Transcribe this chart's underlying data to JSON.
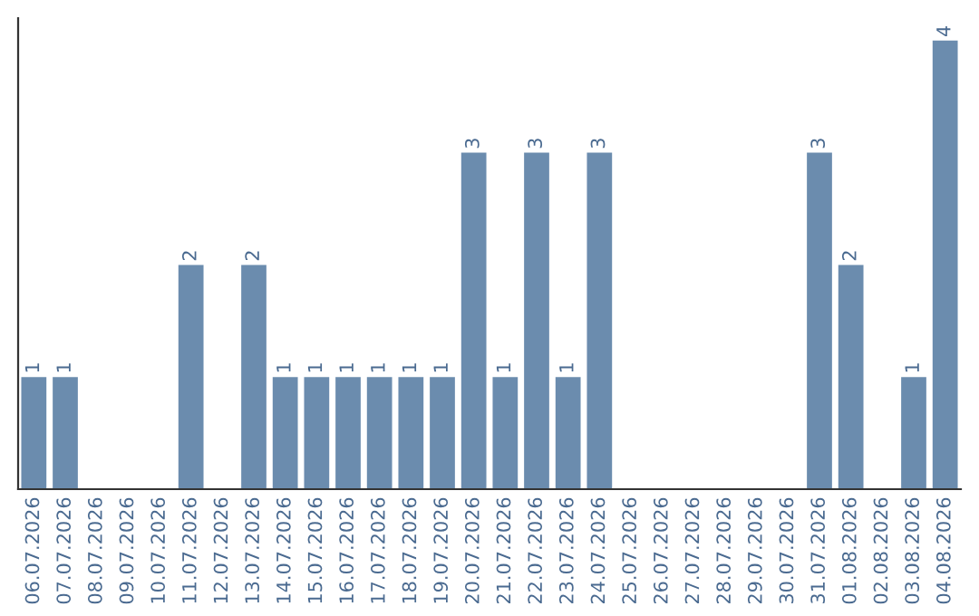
{
  "chart_data": {
    "type": "bar",
    "categories": [
      "06.07.2026",
      "07.07.2026",
      "08.07.2026",
      "09.07.2026",
      "10.07.2026",
      "11.07.2026",
      "12.07.2026",
      "13.07.2026",
      "14.07.2026",
      "15.07.2026",
      "16.07.2026",
      "17.07.2026",
      "18.07.2026",
      "19.07.2026",
      "20.07.2026",
      "21.07.2026",
      "22.07.2026",
      "23.07.2026",
      "24.07.2026",
      "25.07.2026",
      "26.07.2026",
      "27.07.2026",
      "28.07.2026",
      "29.07.2026",
      "30.07.2026",
      "31.07.2026",
      "01.08.2026",
      "02.08.2026",
      "03.08.2026",
      "04.08.2026"
    ],
    "values": [
      1,
      1,
      0,
      0,
      0,
      2,
      0,
      2,
      1,
      1,
      1,
      1,
      1,
      1,
      3,
      1,
      3,
      1,
      3,
      0,
      0,
      0,
      0,
      0,
      0,
      3,
      2,
      0,
      1,
      4
    ],
    "value_labels": [
      "1",
      "1",
      null,
      null,
      null,
      "2",
      null,
      "2",
      "1",
      "1",
      "1",
      "1",
      "1",
      "1",
      "3",
      "1",
      "3",
      "1",
      "3",
      null,
      null,
      null,
      null,
      null,
      null,
      "3",
      "2",
      null,
      "1",
      "4"
    ],
    "color": "#6b8cae",
    "ylim": [
      0,
      4.2
    ],
    "tick_labels": "x",
    "grid": false,
    "legend": false
  }
}
